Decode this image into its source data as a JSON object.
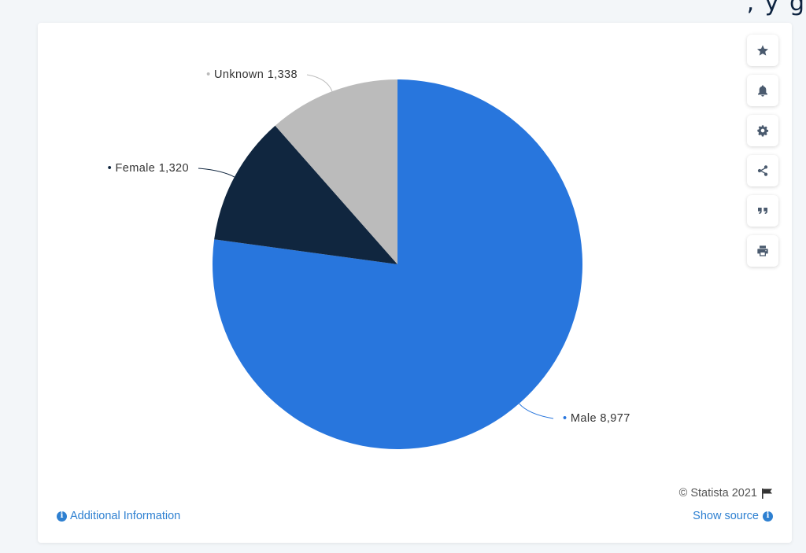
{
  "page_fragment": ", y g",
  "chart_data": {
    "type": "pie",
    "title": "",
    "slices": [
      {
        "label": "Male",
        "value": 8977,
        "value_label": "8,977",
        "color": "#2876dd"
      },
      {
        "label": "Female",
        "value": 1320,
        "value_label": "1,320",
        "color": "#10263f"
      },
      {
        "label": "Unknown",
        "value": 1338,
        "value_label": "1,338",
        "color": "#bbbbbb"
      }
    ],
    "start_angle_deg": 0,
    "direction": "clockwise",
    "legend": "none"
  },
  "toolbar": {
    "items": [
      {
        "name": "favorite",
        "icon": "star-icon"
      },
      {
        "name": "notification",
        "icon": "bell-icon"
      },
      {
        "name": "settings",
        "icon": "gear-icon"
      },
      {
        "name": "share",
        "icon": "share-icon"
      },
      {
        "name": "cite",
        "icon": "quote-icon"
      },
      {
        "name": "print",
        "icon": "print-icon"
      }
    ]
  },
  "footer": {
    "additional_info": "Additional Information",
    "copyright": "© Statista 2021",
    "show_source": "Show source"
  },
  "colors": {
    "accent": "#2e80d1",
    "icon": "#4a5a6e"
  }
}
